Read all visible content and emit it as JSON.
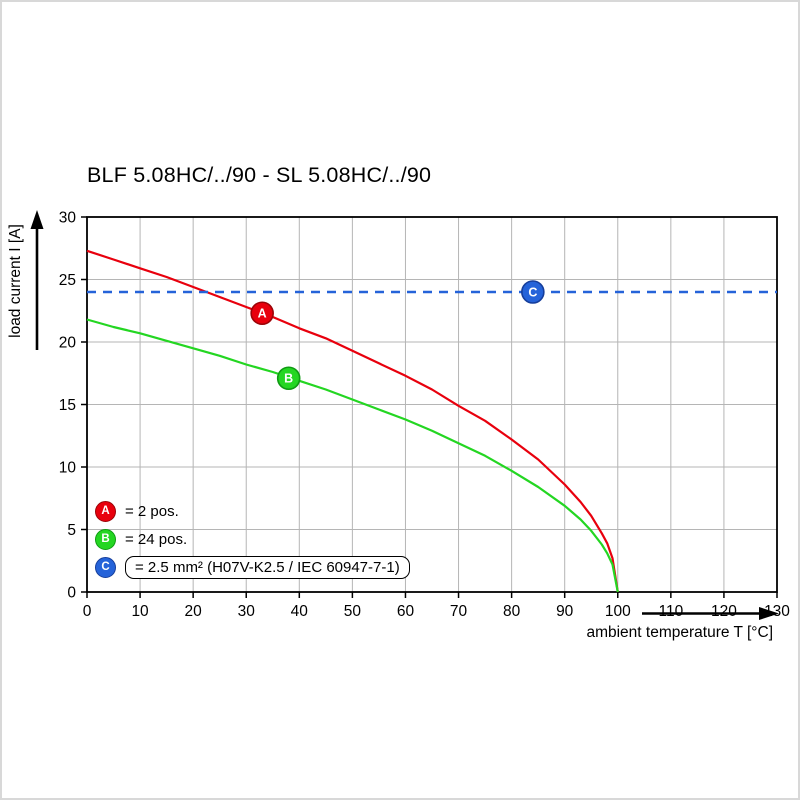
{
  "window": {
    "bg": "#ffffff",
    "frame_color": "#d8d8d8"
  },
  "chart_data": {
    "type": "line",
    "title": "BLF 5.08HC/../90 - SL 5.08HC/../90",
    "xlabel": "ambient temperature T [°C]",
    "ylabel": "load current I [A]",
    "xlim": [
      0,
      130
    ],
    "ylim": [
      0,
      30
    ],
    "xticks": [
      0,
      10,
      20,
      30,
      40,
      50,
      60,
      70,
      80,
      90,
      100,
      110,
      120,
      130
    ],
    "yticks": [
      0,
      5,
      10,
      15,
      20,
      25,
      30
    ],
    "grid": true,
    "legend_position": "bottom-left-inside",
    "colors": {
      "grid": "#b5b5b5",
      "axis": "#000000"
    },
    "series": [
      {
        "name": "A",
        "label": "= 2 pos.",
        "color": "#e8000d",
        "edge": "#9b0408",
        "points": [
          [
            0,
            27.3
          ],
          [
            5,
            26.6
          ],
          [
            10,
            25.9
          ],
          [
            15,
            25.2
          ],
          [
            20,
            24.4
          ],
          [
            25,
            23.6
          ],
          [
            30,
            22.8
          ],
          [
            35,
            22.0
          ],
          [
            40,
            21.1
          ],
          [
            45,
            20.3
          ],
          [
            50,
            19.3
          ],
          [
            55,
            18.3
          ],
          [
            60,
            17.3
          ],
          [
            65,
            16.2
          ],
          [
            70,
            14.9
          ],
          [
            75,
            13.7
          ],
          [
            80,
            12.2
          ],
          [
            85,
            10.6
          ],
          [
            90,
            8.6
          ],
          [
            93,
            7.2
          ],
          [
            95,
            6.1
          ],
          [
            97,
            4.7
          ],
          [
            98,
            3.9
          ],
          [
            99,
            2.7
          ],
          [
            100,
            0
          ]
        ]
      },
      {
        "name": "B",
        "label": "= 24 pos.",
        "color": "#24d622",
        "edge": "#0f9b13",
        "points": [
          [
            0,
            21.8
          ],
          [
            5,
            21.2
          ],
          [
            10,
            20.7
          ],
          [
            15,
            20.1
          ],
          [
            20,
            19.5
          ],
          [
            25,
            18.9
          ],
          [
            30,
            18.2
          ],
          [
            35,
            17.6
          ],
          [
            40,
            16.9
          ],
          [
            45,
            16.2
          ],
          [
            50,
            15.4
          ],
          [
            55,
            14.6
          ],
          [
            60,
            13.8
          ],
          [
            65,
            12.9
          ],
          [
            70,
            11.9
          ],
          [
            75,
            10.9
          ],
          [
            80,
            9.7
          ],
          [
            85,
            8.4
          ],
          [
            90,
            6.9
          ],
          [
            93,
            5.8
          ],
          [
            95,
            4.9
          ],
          [
            97,
            3.8
          ],
          [
            98,
            3.1
          ],
          [
            99,
            2.2
          ],
          [
            100,
            0
          ]
        ]
      },
      {
        "name": "C",
        "label": "= 2.5 mm² (H07V-K2.5 / IEC 60947-7-1)",
        "color": "#2563d9",
        "edge": "#163e9b",
        "type": "threshold",
        "y": 24,
        "dashed": true
      }
    ],
    "markers": [
      {
        "letter": "A",
        "x": 33,
        "y": 22.3,
        "series": 0
      },
      {
        "letter": "B",
        "x": 38,
        "y": 17.1,
        "series": 1
      },
      {
        "letter": "C",
        "x": 84,
        "y": 24,
        "series": 2
      }
    ]
  }
}
